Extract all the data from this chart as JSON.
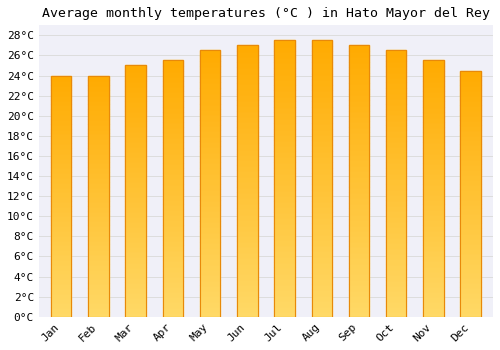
{
  "title": "Average monthly temperatures (°C ) in Hato Mayor del Rey",
  "months": [
    "Jan",
    "Feb",
    "Mar",
    "Apr",
    "May",
    "Jun",
    "Jul",
    "Aug",
    "Sep",
    "Oct",
    "Nov",
    "Dec"
  ],
  "temperatures": [
    24.0,
    24.0,
    25.0,
    25.5,
    26.5,
    27.0,
    27.5,
    27.5,
    27.0,
    26.5,
    25.5,
    24.5
  ],
  "bar_color_main": "#FFAA00",
  "bar_color_light": "#FFD966",
  "bar_color_edge": "#E8890A",
  "ylim": [
    0,
    29
  ],
  "ytick_step": 2,
  "background_color": "#FFFFFF",
  "plot_bg_color": "#F0F0F8",
  "grid_color": "#DDDDDD",
  "title_fontsize": 9.5,
  "tick_fontsize": 8,
  "title_font": "monospace",
  "tick_font": "monospace"
}
